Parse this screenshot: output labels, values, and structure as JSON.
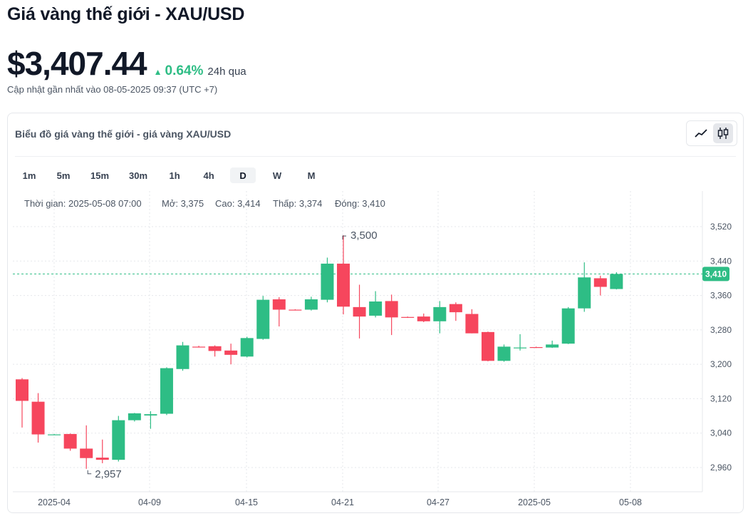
{
  "page": {
    "title": "Giá vàng thế giới - XAU/USD",
    "price": "$3,407.44",
    "change_pct": "0.64%",
    "change_period": "24h qua",
    "updated": "Cập nhật gần nhất vào 08-05-2025 09:37 (UTC +7)"
  },
  "colors": {
    "up": "#2ebd85",
    "down": "#f6465d",
    "grid": "#e5e7eb",
    "axis_text": "#4b5563",
    "price_line": "#2ebd85"
  },
  "card": {
    "title": "Biểu đồ giá vàng thế giới - giá vàng XAU/USD",
    "chart_types": [
      {
        "name": "line-chart-icon",
        "active": false
      },
      {
        "name": "candlestick-icon",
        "active": true
      }
    ],
    "timeframes": [
      "1m",
      "5m",
      "15m",
      "30m",
      "1h",
      "4h",
      "D",
      "W",
      "M"
    ],
    "active_timeframe": "D"
  },
  "ohlc_info": {
    "time": "Thời gian: 2025-05-08 07:00",
    "open": "Mở: 3,375",
    "high": "Cao: 3,414",
    "low": "Thấp: 3,374",
    "close": "Đóng: 3,410"
  },
  "chart_data": {
    "type": "candlestick",
    "ylim": [
      2920,
      3580
    ],
    "yticks": [
      "2,960",
      "3,040",
      "3,120",
      "3,200",
      "3,280",
      "3,360",
      "3,440",
      "3,520"
    ],
    "xticks": [
      "2025-04",
      "04-09",
      "04-15",
      "04-21",
      "04-27",
      "2025-05",
      "05-08"
    ],
    "high_label": "3,500",
    "low_label": "2,957",
    "last_price_label": "3,410",
    "last_price": 3410,
    "candles": [
      {
        "o": 3165,
        "h": 3168,
        "l": 3053,
        "c": 3115
      },
      {
        "o": 3113,
        "h": 3133,
        "l": 3018,
        "c": 3037
      },
      {
        "o": 3037,
        "h": 3038,
        "l": 3036,
        "c": 3037
      },
      {
        "o": 3038,
        "h": 3039,
        "l": 2999,
        "c": 3004
      },
      {
        "o": 3004,
        "h": 3058,
        "l": 2957,
        "c": 2982
      },
      {
        "o": 2983,
        "h": 3025,
        "l": 2970,
        "c": 2978
      },
      {
        "o": 2978,
        "h": 3080,
        "l": 2974,
        "c": 3070
      },
      {
        "o": 3070,
        "h": 3087,
        "l": 3067,
        "c": 3086
      },
      {
        "o": 3081,
        "h": 3091,
        "l": 3050,
        "c": 3084
      },
      {
        "o": 3085,
        "h": 3193,
        "l": 3082,
        "c": 3191
      },
      {
        "o": 3189,
        "h": 3252,
        "l": 3185,
        "c": 3244
      },
      {
        "o": 3241,
        "h": 3243,
        "l": 3239,
        "c": 3240
      },
      {
        "o": 3242,
        "h": 3244,
        "l": 3218,
        "c": 3231
      },
      {
        "o": 3232,
        "h": 3248,
        "l": 3200,
        "c": 3222
      },
      {
        "o": 3218,
        "h": 3264,
        "l": 3216,
        "c": 3261
      },
      {
        "o": 3259,
        "h": 3359,
        "l": 3257,
        "c": 3350
      },
      {
        "o": 3351,
        "h": 3356,
        "l": 3288,
        "c": 3327
      },
      {
        "o": 3327,
        "h": 3328,
        "l": 3326,
        "c": 3326
      },
      {
        "o": 3327,
        "h": 3357,
        "l": 3325,
        "c": 3351
      },
      {
        "o": 3350,
        "h": 3448,
        "l": 3344,
        "c": 3434
      },
      {
        "o": 3434,
        "h": 3500,
        "l": 3316,
        "c": 3334
      },
      {
        "o": 3333,
        "h": 3385,
        "l": 3260,
        "c": 3311
      },
      {
        "o": 3313,
        "h": 3370,
        "l": 3309,
        "c": 3346
      },
      {
        "o": 3347,
        "h": 3362,
        "l": 3268,
        "c": 3309
      },
      {
        "o": 3310,
        "h": 3311,
        "l": 3308,
        "c": 3309
      },
      {
        "o": 3311,
        "h": 3318,
        "l": 3298,
        "c": 3300
      },
      {
        "o": 3300,
        "h": 3347,
        "l": 3272,
        "c": 3333
      },
      {
        "o": 3340,
        "h": 3344,
        "l": 3301,
        "c": 3321
      },
      {
        "o": 3317,
        "h": 3328,
        "l": 3272,
        "c": 3272
      },
      {
        "o": 3275,
        "h": 3276,
        "l": 3207,
        "c": 3208
      },
      {
        "o": 3208,
        "h": 3246,
        "l": 3206,
        "c": 3241
      },
      {
        "o": 3238,
        "h": 3270,
        "l": 3232,
        "c": 3239
      },
      {
        "o": 3240,
        "h": 3241,
        "l": 3238,
        "c": 3239
      },
      {
        "o": 3239,
        "h": 3255,
        "l": 3238,
        "c": 3246
      },
      {
        "o": 3248,
        "h": 3333,
        "l": 3247,
        "c": 3330
      },
      {
        "o": 3330,
        "h": 3437,
        "l": 3322,
        "c": 3402
      },
      {
        "o": 3400,
        "h": 3406,
        "l": 3360,
        "c": 3380
      },
      {
        "o": 3375,
        "h": 3414,
        "l": 3374,
        "c": 3410
      }
    ]
  }
}
